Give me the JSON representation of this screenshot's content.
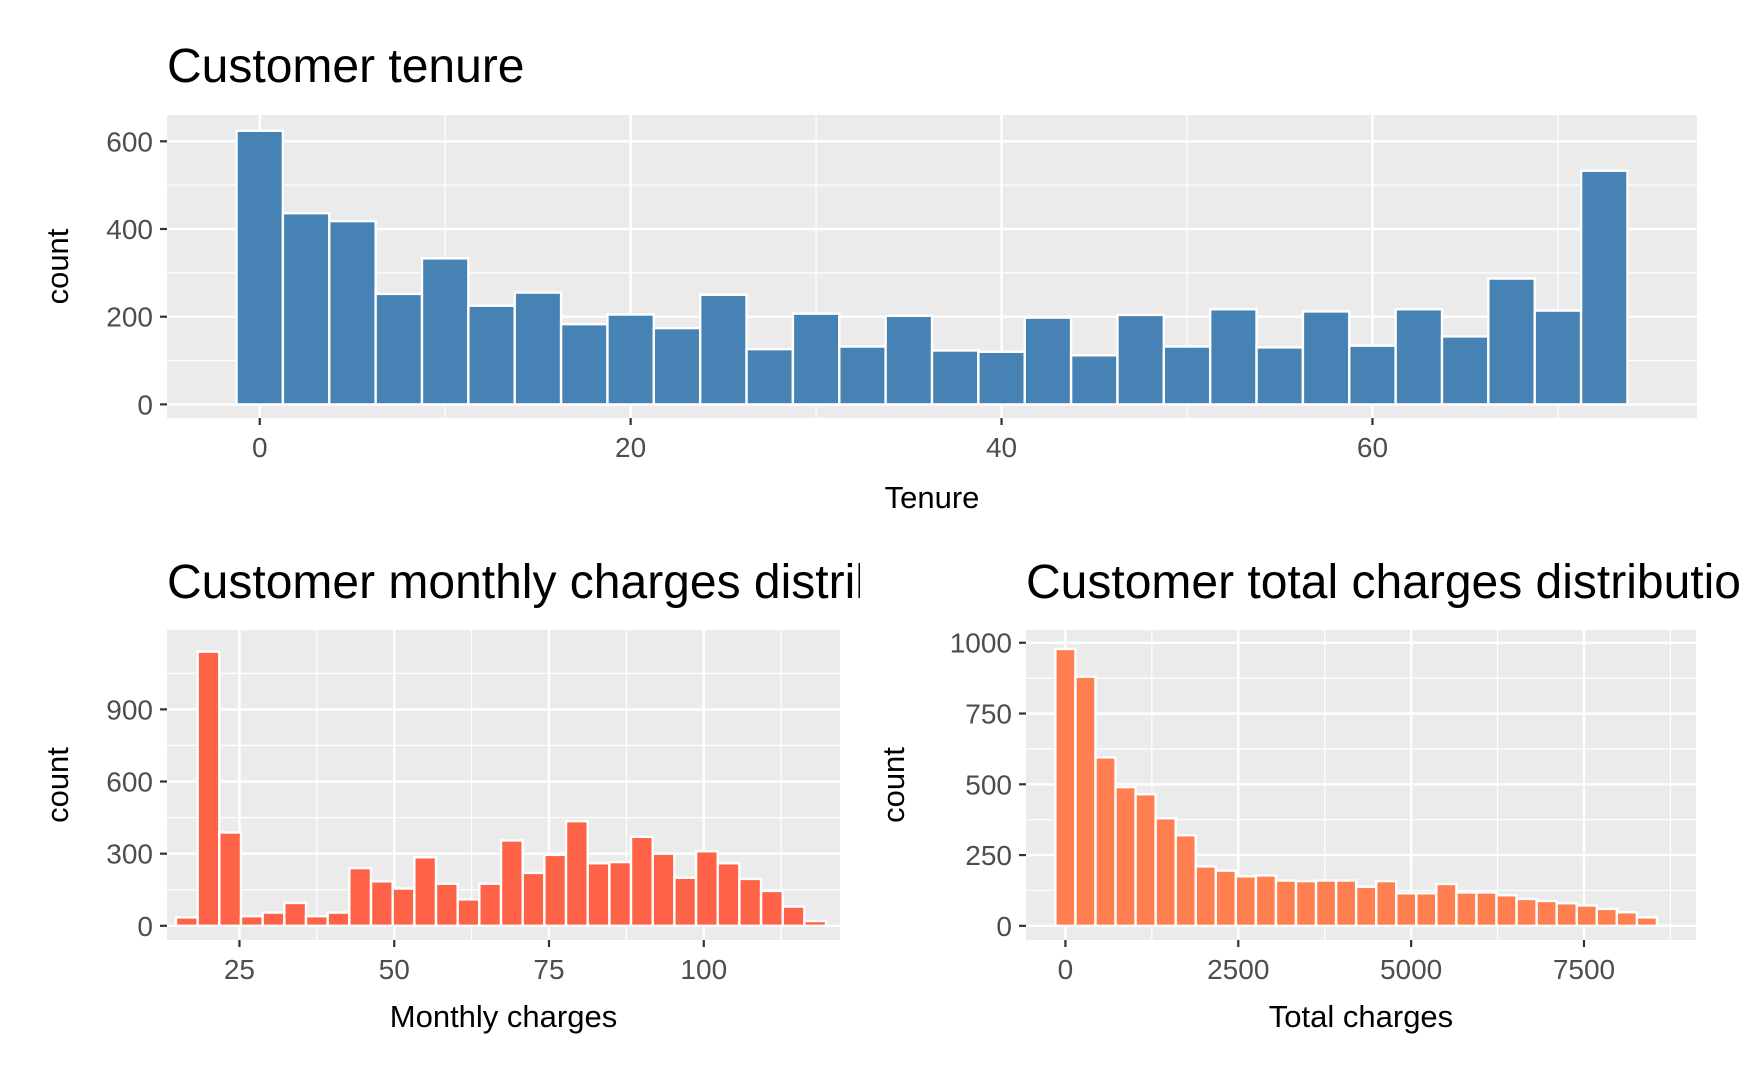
{
  "chart_data": [
    {
      "id": "tenure",
      "type": "bar",
      "title": "Customer tenure",
      "xlabel": "Tenure",
      "ylabel": "count",
      "bar_color": "#4682B4",
      "bin_width": 2.5,
      "x": [
        0,
        2.5,
        5,
        7.5,
        10,
        12.5,
        15,
        17.5,
        20,
        22.5,
        25,
        27.5,
        30,
        32.5,
        35,
        37.5,
        40,
        42.5,
        45,
        47.5,
        50,
        52.5,
        55,
        57.5,
        60,
        62.5,
        65,
        67.5,
        70,
        72.5
      ],
      "values": [
        624,
        436,
        418,
        252,
        333,
        225,
        255,
        183,
        205,
        174,
        250,
        126,
        207,
        132,
        202,
        123,
        120,
        198,
        112,
        204,
        132,
        217,
        130,
        212,
        134,
        217,
        155,
        287,
        214,
        533
      ],
      "xlim": [
        -5,
        77.5
      ],
      "ylim": [
        -31,
        660
      ],
      "xticks": [
        0,
        20,
        40,
        60
      ],
      "yticks": [
        0,
        200,
        400,
        600
      ],
      "grid": true
    },
    {
      "id": "monthly",
      "type": "bar",
      "title": "Customer monthly charges distribution",
      "xlabel": "Monthly charges",
      "ylabel": "count",
      "bar_color": "#FF6347",
      "bin_width": 3.5,
      "x": [
        16.5,
        20,
        23.5,
        27,
        30.5,
        34,
        37.5,
        41,
        44.5,
        48,
        51.5,
        55,
        58.5,
        62,
        65.5,
        69,
        72.5,
        76,
        79.5,
        83,
        86.5,
        90,
        93.5,
        97,
        100.5,
        104,
        107.5,
        111,
        114.5,
        118
      ],
      "values": [
        35,
        1140,
        388,
        40,
        55,
        95,
        40,
        55,
        240,
        185,
        155,
        285,
        175,
        110,
        175,
        355,
        220,
        295,
        435,
        260,
        265,
        370,
        300,
        200,
        310,
        260,
        195,
        145,
        80,
        20
      ],
      "xlim": [
        13.3,
        122
      ],
      "ylim": [
        -59,
        1230
      ],
      "xticks": [
        25,
        50,
        75,
        100
      ],
      "yticks": [
        0,
        300,
        600,
        900
      ],
      "grid": true
    },
    {
      "id": "total",
      "type": "bar",
      "title": "Customer total charges distribution",
      "xlabel": "Total charges",
      "ylabel": "count",
      "bar_color": "#FF7F50",
      "bin_width": 290,
      "x": [
        0,
        290,
        580,
        870,
        1160,
        1450,
        1740,
        2030,
        2320,
        2610,
        2900,
        3190,
        3480,
        3770,
        4060,
        4350,
        4640,
        4930,
        5220,
        5510,
        5800,
        6090,
        6380,
        6670,
        6960,
        7250,
        7540,
        7830,
        8120,
        8410
      ],
      "values": [
        978,
        880,
        595,
        490,
        465,
        380,
        320,
        210,
        195,
        175,
        178,
        160,
        158,
        160,
        160,
        138,
        158,
        115,
        115,
        148,
        118,
        118,
        108,
        95,
        88,
        80,
        72,
        60,
        48,
        30
      ],
      "xlim": [
        -570,
        9120
      ],
      "ylim": [
        -50,
        1045
      ],
      "xticks": [
        0,
        2500,
        5000,
        7500
      ],
      "yticks": [
        0,
        250,
        500,
        750,
        1000
      ],
      "grid": true
    }
  ]
}
